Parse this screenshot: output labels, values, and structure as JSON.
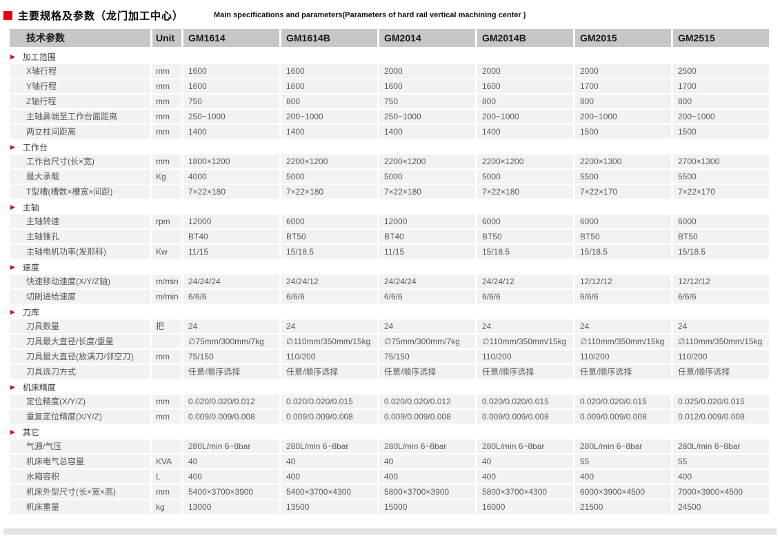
{
  "page_title": {
    "zh": "主要规格及参数（龙门加工中心）",
    "en": "Main specifications and parameters(Parameters of hard rail vertical machining center )"
  },
  "colors": {
    "accent_red": "#e60012",
    "header_bg": "#c7c7c7",
    "row_bg": "#f2f2f2"
  },
  "table": {
    "param_header": "技术参数",
    "unit_header": "Unit",
    "models": [
      "GM1614",
      "GM1614B",
      "GM2014",
      "GM2014B",
      "GM2015",
      "GM2515"
    ],
    "sections": [
      {
        "title": "加工范围",
        "rows": [
          {
            "param": "X轴行程",
            "unit": "mm",
            "values": [
              "1600",
              "1600",
              "2000",
              "2000",
              "2000",
              "2500"
            ]
          },
          {
            "param": "Y轴行程",
            "unit": "mm",
            "values": [
              "1600",
              "1600",
              "1600",
              "1600",
              "1700",
              "1700"
            ]
          },
          {
            "param": "Z轴行程",
            "unit": "mm",
            "values": [
              "750",
              "800",
              "750",
              "800",
              "800",
              "800"
            ]
          },
          {
            "param": "主轴鼻端至工作台面距离",
            "unit": "mm",
            "values": [
              "250~1000",
              "200~1000",
              "250~1000",
              "200~1000",
              "200~1000",
              "200~1000"
            ]
          },
          {
            "param": "两立柱间距离",
            "unit": "mm",
            "values": [
              "1400",
              "1400",
              "1400",
              "1400",
              "1500",
              "1500"
            ]
          }
        ]
      },
      {
        "title": "工作台",
        "rows": [
          {
            "param": "工作台尺寸(长×宽)",
            "unit": "mm",
            "values": [
              "1800×1200",
              "2200×1200",
              "2200×1200",
              "2200×1200",
              "2200×1300",
              "2700×1300"
            ]
          },
          {
            "param": "最大承载",
            "unit": "Kg",
            "values": [
              "4000",
              "5000",
              "5000",
              "5000",
              "5500",
              "5500"
            ]
          },
          {
            "param": "T型槽(槽数×槽宽×间距)",
            "unit": "",
            "values": [
              "7×22×180",
              "7×22×180",
              "7×22×180",
              "7×22×180",
              "7×22×170",
              "7×22×170"
            ]
          }
        ]
      },
      {
        "title": "主轴",
        "rows": [
          {
            "param": "主轴转速",
            "unit": "rpm",
            "values": [
              "12000",
              "6000",
              "12000",
              "6000",
              "6000",
              "6000"
            ]
          },
          {
            "param": "主轴锥孔",
            "unit": "",
            "values": [
              "BT40",
              "BT50",
              "BT40",
              "BT50",
              "BT50",
              "BT50"
            ]
          },
          {
            "param": "主轴电机功率(发那科)",
            "unit": "Kw",
            "values": [
              "11/15",
              "15/18.5",
              "11/15",
              "15/18.5",
              "15/18.5",
              "15/18.5"
            ]
          }
        ]
      },
      {
        "title": "速度",
        "rows": [
          {
            "param": "快速移动速度(X/Y/Z轴)",
            "unit": "m/min",
            "values": [
              "24/24/24",
              "24/24/12",
              "24/24/24",
              "24/24/12",
              "12/12/12",
              "12/12/12"
            ]
          },
          {
            "param": "切削进给速度",
            "unit": "m/min",
            "values": [
              "6/6/6",
              "6/6/6",
              "6/6/6",
              "6/6/6",
              "6/6/6",
              "6/6/6"
            ]
          }
        ]
      },
      {
        "title": "刀库",
        "rows": [
          {
            "param": "刀具数量",
            "unit": "把",
            "values": [
              "24",
              "24",
              "24",
              "24",
              "24",
              "24"
            ]
          },
          {
            "param": "刀具最大直径/长度/重量",
            "unit": "",
            "values": [
              "∅75mm/300mm/7kg",
              "∅110mm/350mm/15kg",
              "∅75mm/300mm/7kg",
              "∅110mm/350mm/15kg",
              "∅110mm/350mm/15kg",
              "∅110mm/350mm/15kg"
            ]
          },
          {
            "param": "刀具最大直径(放满刀/邻空刀)",
            "unit": "mm",
            "values": [
              "75/150",
              "110/200",
              "75/150",
              "110/200",
              "110/200",
              "110/200"
            ]
          },
          {
            "param": "刀具选刀方式",
            "unit": "",
            "values": [
              "任意/顺序选择",
              "任意/顺序选择",
              "任意/顺序选择",
              "任意/顺序选择",
              "任意/顺序选择",
              "任意/顺序选择"
            ]
          }
        ]
      },
      {
        "title": "机床精度",
        "rows": [
          {
            "param": "定位精度(X/Y/Z)",
            "unit": "mm",
            "values": [
              "0.020/0.020/0.012",
              "0.020/0.020/0.015",
              "0.020/0.020/0.012",
              "0.020/0.020/0.015",
              "0.020/0.020/0.015",
              "0.025/0.020/0.015"
            ]
          },
          {
            "param": "重复定位精度(X/Y/Z)",
            "unit": "mm",
            "values": [
              "0.009/0.009/0.008",
              "0.009/0.009/0.008",
              "0.009/0.009/0.008",
              "0.009/0.009/0.008",
              "0.009/0.009/0.008",
              "0.012/0.009/0.008"
            ]
          }
        ]
      },
      {
        "title": "其它",
        "rows": [
          {
            "param": "气源/气压",
            "unit": "",
            "values": [
              "280L/min 6~8bar",
              "280L/min 6~8bar",
              "280L/min 6~8bar",
              "280L/min 6~8bar",
              "280L/min 6~8bar",
              "280L/min 6~8bar"
            ]
          },
          {
            "param": "机床电气总容量",
            "unit": "KVA",
            "values": [
              "40",
              "40",
              "40",
              "40",
              "55",
              "55"
            ]
          },
          {
            "param": "水箱容积",
            "unit": "L",
            "values": [
              "400",
              "400",
              "400",
              "400",
              "400",
              "400"
            ]
          },
          {
            "param": "机床外型尺寸(长×宽×高)",
            "unit": "mm",
            "values": [
              "5400×3700×3900",
              "5400×3700×4300",
              "5800×3700×3900",
              "5800×3700×4300",
              "6000×3900×4500",
              "7000×3900×4500"
            ]
          },
          {
            "param": "机床重量",
            "unit": "kg",
            "values": [
              "13000",
              "13500",
              "15000",
              "16000",
              "21500",
              "24500"
            ]
          }
        ]
      }
    ]
  }
}
